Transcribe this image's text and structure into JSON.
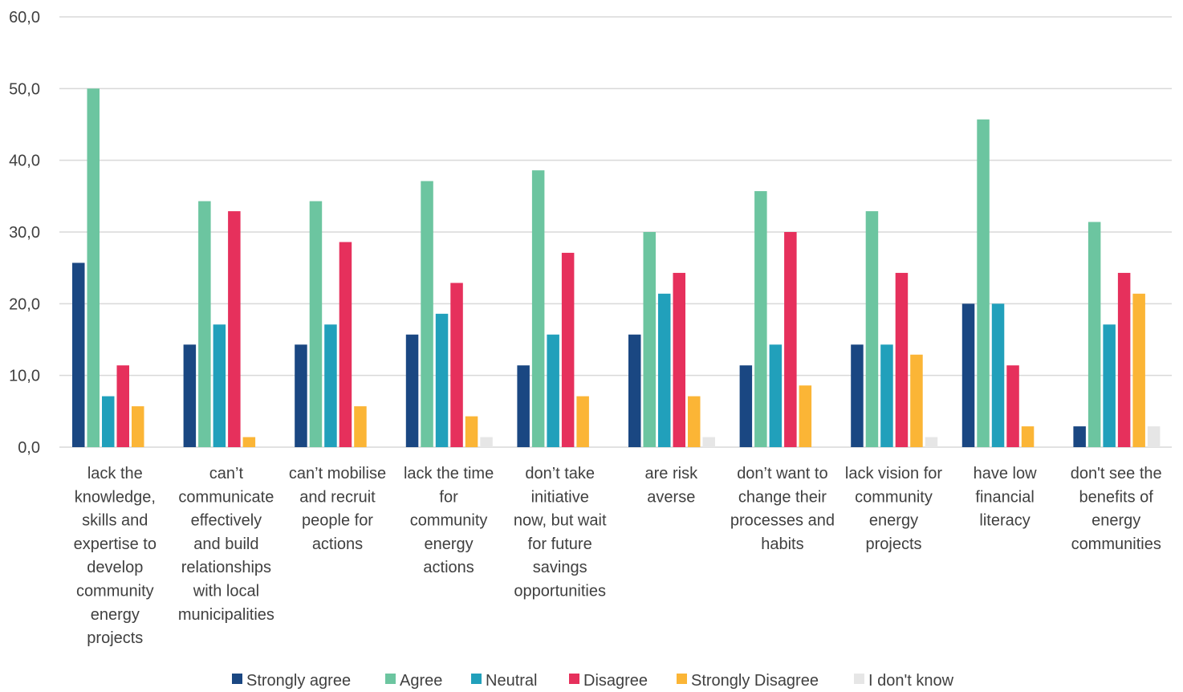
{
  "chart_data": {
    "type": "bar",
    "title": "",
    "xlabel": "",
    "ylabel": "",
    "ylim": [
      0,
      60
    ],
    "yticks": [
      "0,0",
      "10,0",
      "20,0",
      "30,0",
      "40,0",
      "50,0",
      "60,0"
    ],
    "grid": true,
    "legend_position": "bottom",
    "categories": [
      [
        "lack the",
        "knowledge,",
        "skills and",
        "expertise to",
        "develop",
        "community",
        "energy",
        "projects"
      ],
      [
        "can’t",
        "communicate",
        "effectively",
        "and build",
        "relationships",
        "with local",
        "municipalities"
      ],
      [
        "can’t mobilise",
        "and recruit",
        "people for",
        "actions"
      ],
      [
        "lack the time",
        "for",
        "community",
        "energy",
        "actions"
      ],
      [
        "don’t take",
        "initiative",
        "now, but wait",
        "for future",
        "savings",
        "opportunities"
      ],
      [
        "are risk",
        "averse"
      ],
      [
        "don’t want to",
        "change their",
        "processes and",
        "habits"
      ],
      [
        "lack vision for",
        "community",
        "energy",
        "projects"
      ],
      [
        "have low",
        "financial",
        "literacy"
      ],
      [
        "don't see the",
        "benefits of",
        "energy",
        "communities"
      ]
    ],
    "series": [
      {
        "name": "Strongly agree",
        "color": "#1a4782",
        "values": [
          25.7,
          14.3,
          14.3,
          15.7,
          11.4,
          15.7,
          11.4,
          14.3,
          20.0,
          2.9
        ]
      },
      {
        "name": "Agree",
        "color": "#6cc5a0",
        "values": [
          50.0,
          34.3,
          34.3,
          37.1,
          38.6,
          30.0,
          35.7,
          32.9,
          45.7,
          31.4
        ]
      },
      {
        "name": "Neutral",
        "color": "#21a0bb",
        "values": [
          7.1,
          17.1,
          17.1,
          18.6,
          15.7,
          21.4,
          14.3,
          14.3,
          20.0,
          17.1
        ]
      },
      {
        "name": "Disagree",
        "color": "#e6305c",
        "values": [
          11.4,
          32.9,
          28.6,
          22.9,
          27.1,
          24.3,
          30.0,
          24.3,
          11.4,
          24.3
        ]
      },
      {
        "name": "Strongly Disagree",
        "color": "#fbb536",
        "values": [
          5.7,
          1.4,
          5.7,
          4.3,
          7.1,
          7.1,
          8.6,
          12.9,
          2.9,
          21.4
        ]
      },
      {
        "name": "I don't know",
        "color": "#e6e6e6",
        "values": [
          0.0,
          0.0,
          0.0,
          1.4,
          0.0,
          1.4,
          0.0,
          1.4,
          0.0,
          2.9
        ]
      }
    ]
  }
}
